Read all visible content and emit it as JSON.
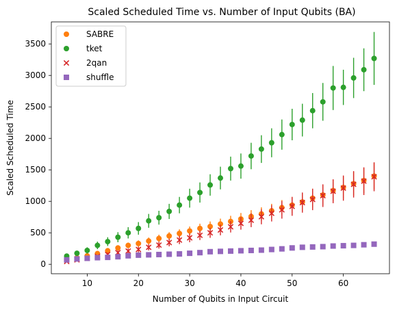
{
  "chart_data": {
    "type": "scatter",
    "title": "Scaled Scheduled Time vs. Number of Input Qubits (BA)",
    "xlabel": "Number of Qubits in Input Circuit",
    "ylabel": "Scaled Scheduled Time",
    "xlim": [
      3.0,
      69.0
    ],
    "ylim": [
      -150,
      3850
    ],
    "xticks": [
      10,
      20,
      30,
      40,
      50,
      60
    ],
    "yticks": [
      0,
      500,
      1000,
      1500,
      2000,
      2500,
      3000,
      3500
    ],
    "grid": false,
    "legend_position": "top-left",
    "x": [
      6,
      8,
      10,
      12,
      14,
      16,
      18,
      20,
      22,
      24,
      26,
      28,
      30,
      32,
      34,
      36,
      38,
      40,
      42,
      44,
      46,
      48,
      50,
      52,
      54,
      56,
      58,
      60,
      62,
      64,
      66
    ],
    "series": [
      {
        "name": "SABRE",
        "color": "#ff7f0e",
        "marker": "circle",
        "values": [
          75,
          105,
          135,
          170,
          215,
          260,
          300,
          330,
          370,
          410,
          450,
          490,
          530,
          570,
          600,
          640,
          680,
          720,
          760,
          800,
          850,
          900,
          940,
          990,
          1050,
          1100,
          1170,
          1220,
          1280,
          1330,
          1400
        ],
        "errors": [
          15,
          20,
          25,
          30,
          35,
          40,
          45,
          50,
          55,
          60,
          60,
          65,
          70,
          75,
          80,
          85,
          90,
          95,
          100,
          105,
          110,
          120,
          130,
          140,
          150,
          160,
          170,
          180,
          190,
          200,
          210
        ]
      },
      {
        "name": "tket",
        "color": "#2ca02c",
        "marker": "circle",
        "values": [
          130,
          175,
          220,
          300,
          360,
          430,
          500,
          570,
          690,
          740,
          840,
          940,
          1050,
          1140,
          1260,
          1370,
          1520,
          1560,
          1720,
          1830,
          1930,
          2060,
          2220,
          2290,
          2440,
          2580,
          2800,
          2810,
          2960,
          3090,
          3270
        ],
        "errors": [
          30,
          40,
          50,
          60,
          70,
          80,
          90,
          100,
          110,
          110,
          120,
          130,
          150,
          160,
          170,
          180,
          190,
          200,
          210,
          220,
          230,
          240,
          250,
          260,
          280,
          300,
          350,
          280,
          320,
          340,
          420
        ]
      },
      {
        "name": "2qan",
        "color": "#d62728",
        "marker": "x",
        "values": [
          45,
          70,
          95,
          125,
          155,
          185,
          210,
          235,
          270,
          305,
          345,
          385,
          420,
          460,
          500,
          545,
          595,
          650,
          700,
          755,
          810,
          865,
          920,
          980,
          1030,
          1090,
          1160,
          1210,
          1270,
          1320,
          1390
        ],
        "errors": [
          10,
          15,
          20,
          25,
          30,
          35,
          40,
          45,
          50,
          55,
          60,
          65,
          70,
          75,
          80,
          85,
          90,
          100,
          110,
          120,
          130,
          140,
          150,
          160,
          170,
          180,
          190,
          200,
          210,
          220,
          230
        ]
      },
      {
        "name": "shuffle",
        "color": "#9467bd",
        "marker": "square",
        "values": [
          70,
          85,
          95,
          105,
          110,
          120,
          135,
          145,
          150,
          155,
          160,
          165,
          175,
          185,
          200,
          205,
          210,
          215,
          220,
          225,
          235,
          245,
          260,
          270,
          275,
          280,
          290,
          295,
          300,
          310,
          320
        ],
        "errors": [
          5,
          5,
          5,
          5,
          5,
          5,
          5,
          5,
          5,
          5,
          5,
          5,
          5,
          5,
          5,
          5,
          5,
          5,
          5,
          5,
          5,
          5,
          5,
          5,
          5,
          5,
          5,
          5,
          5,
          5,
          5
        ]
      }
    ]
  }
}
